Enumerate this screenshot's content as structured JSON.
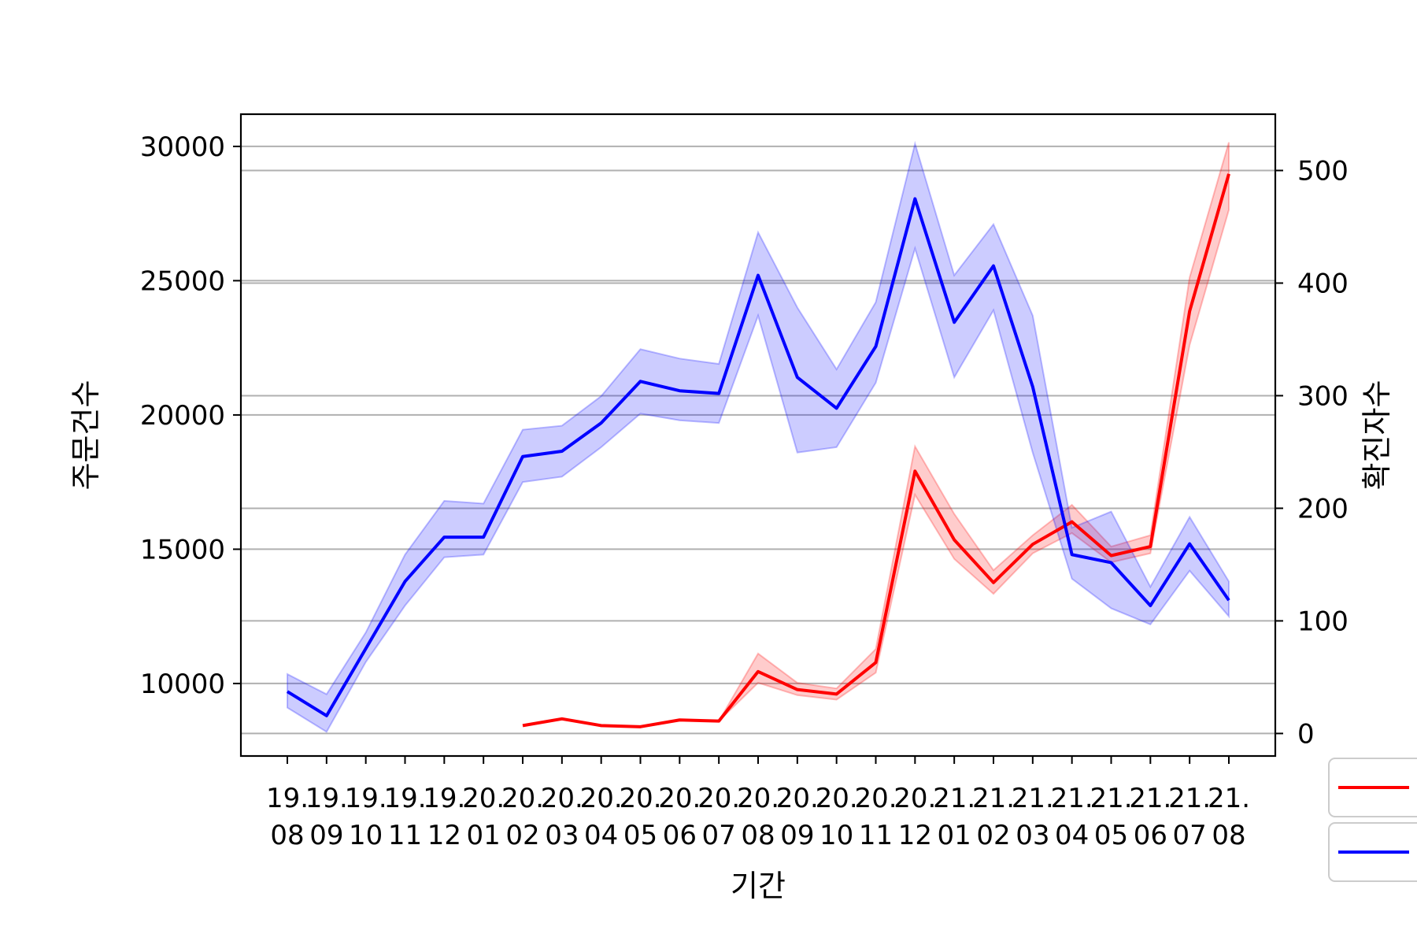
{
  "chart_data": {
    "type": "line",
    "title": "",
    "xlabel": "기간",
    "ylabel_left": "주문건수",
    "ylabel_right": "확진자수",
    "grid": "horizontal",
    "legend_placement": "lower-right outside",
    "categories": [
      [
        "19.",
        "08"
      ],
      [
        "19.",
        "09"
      ],
      [
        "19.",
        "10"
      ],
      [
        "19.",
        "11"
      ],
      [
        "19.",
        "12"
      ],
      [
        "20.",
        "01"
      ],
      [
        "20.",
        "02"
      ],
      [
        "20.",
        "03"
      ],
      [
        "20.",
        "04"
      ],
      [
        "20.",
        "05"
      ],
      [
        "20.",
        "06"
      ],
      [
        "20.",
        "07"
      ],
      [
        "20.",
        "08"
      ],
      [
        "20.",
        "09"
      ],
      [
        "20.",
        "10"
      ],
      [
        "20.",
        "11"
      ],
      [
        "20.",
        "12"
      ],
      [
        "21.",
        "01"
      ],
      [
        "21.",
        "02"
      ],
      [
        "21.",
        "03"
      ],
      [
        "21.",
        "04"
      ],
      [
        "21.",
        "05"
      ],
      [
        "21.",
        "06"
      ],
      [
        "21.",
        "07"
      ],
      [
        "21.",
        "08"
      ]
    ],
    "y_left": {
      "ticks": [
        10000,
        15000,
        20000,
        25000,
        30000
      ],
      "range": [
        7300,
        31200
      ]
    },
    "y_right": {
      "ticks": [
        0,
        100,
        200,
        300,
        400,
        500
      ],
      "range": [
        -20,
        550
      ]
    },
    "series": [
      {
        "axis": "right",
        "color": "#ff0000",
        "values": [
          null,
          null,
          null,
          null,
          null,
          null,
          7,
          13,
          7,
          6,
          12,
          11,
          55,
          39,
          35,
          63,
          233,
          172,
          134,
          168,
          188,
          158,
          166,
          375,
          497
        ],
        "lower": [
          null,
          null,
          null,
          null,
          null,
          null,
          7,
          13,
          7,
          6,
          12,
          11,
          45,
          34,
          30,
          54,
          212,
          155,
          124,
          160,
          178,
          152,
          160,
          345,
          465
        ],
        "upper": [
          null,
          null,
          null,
          null,
          null,
          null,
          7,
          13,
          7,
          6,
          12,
          11,
          71,
          45,
          40,
          75,
          255,
          195,
          145,
          176,
          203,
          166,
          176,
          405,
          525
        ]
      },
      {
        "axis": "left",
        "color": "#0000ff",
        "values": [
          9700,
          8800,
          11300,
          13800,
          15450,
          15450,
          18450,
          18650,
          19700,
          21250,
          20900,
          20800,
          25200,
          21400,
          20250,
          22550,
          28050,
          23450,
          25550,
          21050,
          14800,
          14500,
          12900,
          15200,
          13100
        ],
        "lower": [
          9100,
          8200,
          10800,
          12900,
          14700,
          14800,
          17500,
          17700,
          18800,
          20050,
          19800,
          19700,
          23700,
          18600,
          18800,
          21200,
          26200,
          21400,
          23900,
          18600,
          13900,
          12800,
          12200,
          14200,
          12500
        ],
        "upper": [
          10350,
          9600,
          11900,
          14800,
          16800,
          16700,
          19450,
          19600,
          20700,
          22450,
          22100,
          21900,
          26800,
          24000,
          21700,
          24200,
          30100,
          25200,
          27100,
          23700,
          15800,
          16400,
          13600,
          16200,
          13800
        ]
      }
    ]
  }
}
